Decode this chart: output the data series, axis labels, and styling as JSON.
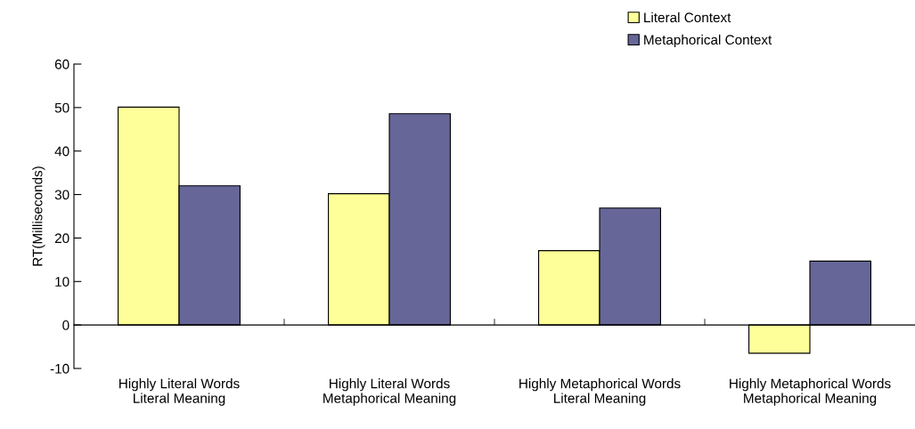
{
  "chart_data": {
    "type": "bar",
    "ylabel": "RT(Milliseconds)",
    "categories": [
      "Highly Literal Words\nLiteral Meaning",
      "Highly Literal Words\nMetaphorical Meaning",
      "Highly Metaphorical Words\nLiteral Meaning",
      "Highly Metaphorical Words\nMetaphorical Meaning"
    ],
    "series": [
      {
        "name": "Literal Context",
        "color": "#ffff99",
        "values": [
          50.1,
          30.2,
          17.1,
          -6.5
        ]
      },
      {
        "name": "Metaphorical Context",
        "color": "#666699",
        "values": [
          32.0,
          48.6,
          26.9,
          14.7
        ]
      }
    ],
    "ylim": [
      -10,
      60
    ],
    "yticks": [
      -10,
      0,
      10,
      20,
      30,
      40,
      50,
      60
    ],
    "legend": "top right"
  }
}
